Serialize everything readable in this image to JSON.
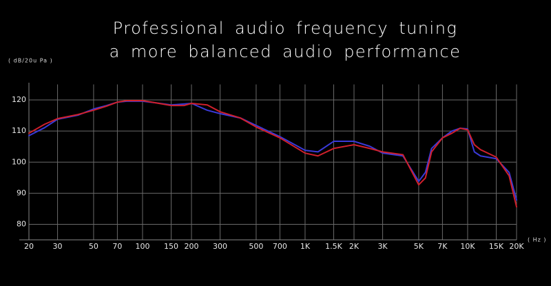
{
  "chart_data": {
    "type": "line",
    "title": [
      "Professional audio frequency tuning",
      "a more balanced audio performance"
    ],
    "y_label": "( dB/20u Pa )",
    "x_label": "( Hz )",
    "x_scale": "log",
    "grid": true,
    "x": [
      20,
      25,
      30,
      40,
      50,
      60,
      70,
      80,
      100,
      120,
      150,
      180,
      200,
      250,
      300,
      400,
      500,
      700,
      1000,
      1200,
      1500,
      2000,
      2500,
      3000,
      4000,
      5000,
      5500,
      6000,
      7000,
      8000,
      9000,
      10000,
      11000,
      12000,
      15000,
      18000,
      20000
    ],
    "series": [
      {
        "color": "#3a3ad8",
        "values": [
          108.5,
          111.1,
          113.8,
          115.1,
          117.1,
          118.2,
          119.3,
          119.6,
          119.6,
          119.1,
          118.4,
          118.7,
          118.9,
          116.7,
          115.6,
          114.2,
          111.8,
          108.2,
          103.8,
          103.3,
          106.7,
          106.7,
          105.1,
          102.9,
          102.0,
          93.8,
          96.7,
          104.4,
          107.8,
          110.0,
          110.9,
          110.7,
          103.3,
          102.0,
          101.1,
          96.7,
          87.8
        ]
      },
      {
        "color": "#d0202c",
        "values": [
          109.3,
          112.2,
          114.0,
          115.3,
          116.7,
          118.0,
          119.3,
          119.8,
          119.8,
          119.1,
          118.2,
          118.2,
          118.9,
          118.4,
          116.2,
          114.2,
          111.3,
          107.8,
          102.9,
          102.0,
          104.4,
          105.6,
          104.4,
          103.3,
          102.4,
          92.7,
          94.9,
          103.3,
          107.8,
          109.3,
          110.9,
          110.4,
          105.6,
          104.0,
          101.6,
          95.6,
          85.6
        ]
      }
    ],
    "xlim": [
      20,
      20000
    ],
    "ylim": [
      75,
      125
    ],
    "xticks": [
      20,
      30,
      50,
      70,
      100,
      150,
      200,
      300,
      500,
      700,
      {
        "value": 1000,
        "label": "1K"
      },
      {
        "value": 1500,
        "label": "1.5K"
      },
      {
        "value": 2000,
        "label": "2K"
      },
      {
        "value": 3000,
        "label": "3K"
      },
      {
        "value": 5000,
        "label": "5K"
      },
      {
        "value": 7000,
        "label": "7K"
      },
      {
        "value": 10000,
        "label": "10K"
      },
      {
        "value": 15000,
        "label": "15K"
      },
      {
        "value": 20000,
        "label": "20K"
      }
    ],
    "yticks": [
      80,
      90,
      100,
      110,
      120
    ]
  }
}
